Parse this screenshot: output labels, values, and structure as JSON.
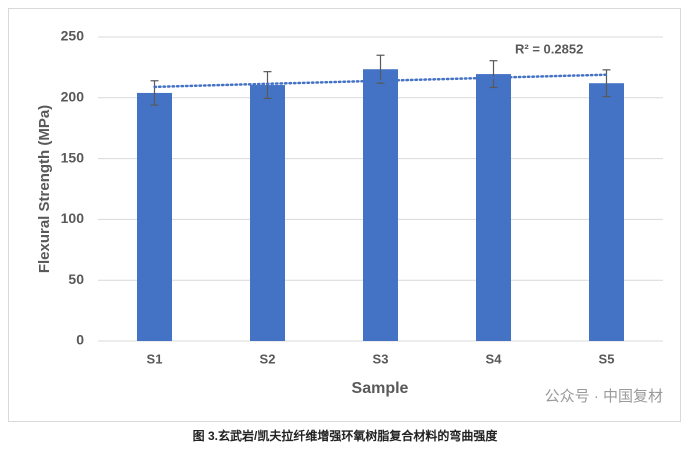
{
  "chart_data": {
    "type": "bar",
    "x_label": "Sample",
    "y_label": "Flexural Strength (MPa)",
    "categories": [
      "S1",
      "S2",
      "S3",
      "S4",
      "S5"
    ],
    "values": [
      204,
      210.5,
      223.5,
      219.5,
      212
    ],
    "errors": [
      10,
      11,
      11.5,
      11,
      11
    ],
    "color": "#4472c4",
    "ylim": [
      0,
      250
    ],
    "yticks": [
      0,
      50,
      100,
      150,
      200,
      250
    ],
    "grid": true,
    "trendline": {
      "label": "R² = 0.2852",
      "values": [
        209,
        219
      ]
    }
  },
  "watermark": "公众号 · 中国复材",
  "caption": "图 3.玄武岩/凯夫拉纤维增强环氧树脂复合材料的弯曲强度"
}
